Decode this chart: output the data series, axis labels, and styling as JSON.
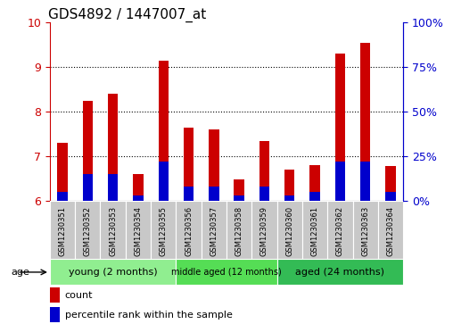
{
  "title": "GDS4892 / 1447007_at",
  "samples": [
    "GSM1230351",
    "GSM1230352",
    "GSM1230353",
    "GSM1230354",
    "GSM1230355",
    "GSM1230356",
    "GSM1230357",
    "GSM1230358",
    "GSM1230359",
    "GSM1230360",
    "GSM1230361",
    "GSM1230362",
    "GSM1230363",
    "GSM1230364"
  ],
  "count_values": [
    7.3,
    8.25,
    8.4,
    6.6,
    9.15,
    7.65,
    7.6,
    6.48,
    7.35,
    6.7,
    6.8,
    9.3,
    9.55,
    6.78
  ],
  "percentile_values": [
    5,
    15,
    15,
    3,
    22,
    8,
    8,
    3,
    8,
    3,
    5,
    22,
    22,
    5
  ],
  "ylim_left": [
    6,
    10
  ],
  "ylim_right": [
    0,
    100
  ],
  "yticks_left": [
    6,
    7,
    8,
    9,
    10
  ],
  "yticks_right": [
    0,
    25,
    50,
    75,
    100
  ],
  "groups": [
    {
      "label": "young (2 months)",
      "start": 0,
      "end": 5
    },
    {
      "label": "middle aged (12 months)",
      "start": 5,
      "end": 9
    },
    {
      "label": "aged (24 months)",
      "start": 9,
      "end": 14
    }
  ],
  "group_colors": [
    "#90EE90",
    "#55DD55",
    "#33BB55"
  ],
  "group_font_sizes": [
    8,
    7,
    8
  ],
  "bar_color_red": "#CC0000",
  "bar_color_blue": "#0000CC",
  "bar_width": 0.4,
  "count_label": "count",
  "percentile_label": "percentile rank within the sample",
  "age_label": "age",
  "title_fontsize": 11,
  "axis_color_left": "#CC0000",
  "axis_color_right": "#0000CC",
  "background_color": "#ffffff",
  "ybase": 6.0,
  "tick_fontsize": 9,
  "sample_fontsize": 6
}
